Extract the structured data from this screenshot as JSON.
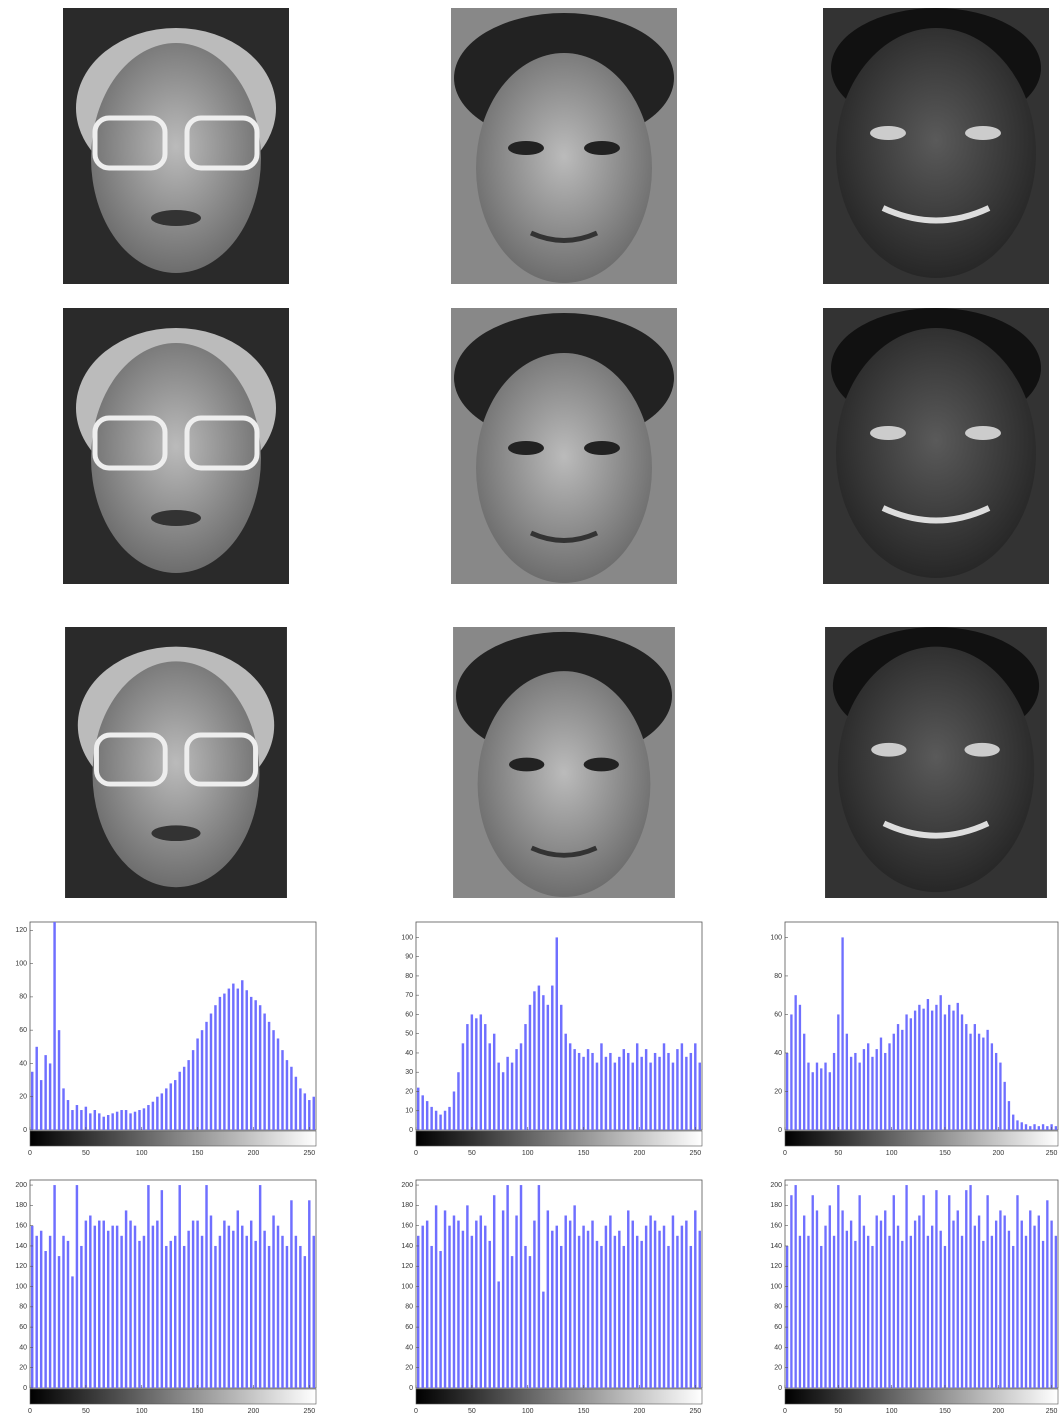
{
  "chart_data": [
    {
      "type": "histogram",
      "color": "#6f6fff",
      "xlim": [
        0,
        256
      ],
      "ylim": [
        0,
        125
      ],
      "xticks": [
        0,
        50,
        100,
        150,
        200,
        250
      ],
      "yticks": [
        0,
        20,
        40,
        60,
        80,
        100,
        120
      ],
      "bins": [
        0,
        4,
        8,
        12,
        16,
        20,
        24,
        28,
        32,
        36,
        40,
        44,
        48,
        52,
        56,
        60,
        64,
        68,
        72,
        76,
        80,
        84,
        88,
        92,
        96,
        100,
        104,
        108,
        112,
        116,
        120,
        124,
        128,
        132,
        136,
        140,
        144,
        148,
        152,
        156,
        160,
        164,
        168,
        172,
        176,
        180,
        184,
        188,
        192,
        196,
        200,
        204,
        208,
        212,
        216,
        220,
        224,
        228,
        232,
        236,
        240,
        244,
        248,
        252,
        256
      ],
      "values": [
        35,
        50,
        30,
        45,
        40,
        125,
        60,
        25,
        18,
        12,
        15,
        12,
        14,
        10,
        12,
        10,
        8,
        9,
        10,
        11,
        12,
        12,
        10,
        11,
        12,
        13,
        15,
        17,
        20,
        22,
        25,
        28,
        30,
        35,
        38,
        42,
        48,
        55,
        60,
        65,
        70,
        75,
        80,
        82,
        85,
        88,
        85,
        90,
        84,
        80,
        78,
        75,
        70,
        65,
        60,
        55,
        48,
        42,
        38,
        32,
        25,
        22,
        18,
        20
      ]
    },
    {
      "type": "histogram",
      "color": "#6f6fff",
      "xlim": [
        0,
        256
      ],
      "ylim": [
        0,
        108
      ],
      "xticks": [
        0,
        50,
        100,
        150,
        200,
        250
      ],
      "yticks": [
        0,
        10,
        20,
        30,
        40,
        50,
        60,
        70,
        80,
        90,
        100
      ],
      "bins": [
        0,
        4,
        8,
        12,
        16,
        20,
        24,
        28,
        32,
        36,
        40,
        44,
        48,
        52,
        56,
        60,
        64,
        68,
        72,
        76,
        80,
        84,
        88,
        92,
        96,
        100,
        104,
        108,
        112,
        116,
        120,
        124,
        128,
        132,
        136,
        140,
        144,
        148,
        152,
        156,
        160,
        164,
        168,
        172,
        176,
        180,
        184,
        188,
        192,
        196,
        200,
        204,
        208,
        212,
        216,
        220,
        224,
        228,
        232,
        236,
        240,
        244,
        248,
        252,
        256
      ],
      "values": [
        22,
        18,
        15,
        12,
        10,
        8,
        10,
        12,
        20,
        30,
        45,
        55,
        60,
        58,
        60,
        55,
        45,
        50,
        35,
        30,
        38,
        35,
        42,
        45,
        55,
        65,
        72,
        75,
        70,
        65,
        75,
        100,
        65,
        50,
        45,
        42,
        40,
        38,
        42,
        40,
        35,
        45,
        38,
        40,
        35,
        38,
        42,
        40,
        35,
        45,
        38,
        42,
        35,
        40,
        38,
        45,
        40,
        35,
        42,
        45,
        38,
        40,
        45,
        35
      ]
    },
    {
      "type": "histogram",
      "color": "#6f6fff",
      "xlim": [
        0,
        256
      ],
      "ylim": [
        0,
        108
      ],
      "xticks": [
        0,
        50,
        100,
        150,
        200,
        250
      ],
      "yticks": [
        0,
        20,
        40,
        60,
        80,
        100
      ],
      "bins": [
        0,
        4,
        8,
        12,
        16,
        20,
        24,
        28,
        32,
        36,
        40,
        44,
        48,
        52,
        56,
        60,
        64,
        68,
        72,
        76,
        80,
        84,
        88,
        92,
        96,
        100,
        104,
        108,
        112,
        116,
        120,
        124,
        128,
        132,
        136,
        140,
        144,
        148,
        152,
        156,
        160,
        164,
        168,
        172,
        176,
        180,
        184,
        188,
        192,
        196,
        200,
        204,
        208,
        212,
        216,
        220,
        224,
        228,
        232,
        236,
        240,
        244,
        248,
        252,
        256
      ],
      "values": [
        40,
        60,
        70,
        65,
        50,
        35,
        30,
        35,
        32,
        35,
        30,
        40,
        60,
        100,
        50,
        38,
        40,
        35,
        42,
        45,
        38,
        42,
        48,
        40,
        45,
        50,
        55,
        52,
        60,
        58,
        62,
        65,
        63,
        68,
        62,
        65,
        70,
        60,
        65,
        62,
        66,
        60,
        55,
        50,
        55,
        50,
        48,
        52,
        45,
        40,
        35,
        25,
        15,
        8,
        5,
        4,
        3,
        2,
        3,
        2,
        3,
        2,
        3,
        2
      ]
    },
    {
      "type": "histogram",
      "color": "#6f6fff",
      "xlim": [
        0,
        256
      ],
      "ylim": [
        0,
        205
      ],
      "xticks": [
        0,
        50,
        100,
        150,
        200,
        250
      ],
      "yticks": [
        0,
        20,
        40,
        60,
        80,
        100,
        120,
        140,
        160,
        180,
        200
      ],
      "bins": [
        0,
        4,
        8,
        12,
        16,
        20,
        24,
        28,
        32,
        36,
        40,
        44,
        48,
        52,
        56,
        60,
        64,
        68,
        72,
        76,
        80,
        84,
        88,
        92,
        96,
        100,
        104,
        108,
        112,
        116,
        120,
        124,
        128,
        132,
        136,
        140,
        144,
        148,
        152,
        156,
        160,
        164,
        168,
        172,
        176,
        180,
        184,
        188,
        192,
        196,
        200,
        204,
        208,
        212,
        216,
        220,
        224,
        228,
        232,
        236,
        240,
        244,
        248,
        252,
        256
      ],
      "values": [
        160,
        150,
        155,
        135,
        150,
        200,
        130,
        150,
        145,
        110,
        200,
        140,
        165,
        170,
        160,
        165,
        165,
        155,
        160,
        160,
        150,
        175,
        165,
        160,
        145,
        150,
        200,
        160,
        165,
        195,
        140,
        145,
        150,
        200,
        140,
        155,
        165,
        165,
        150,
        200,
        170,
        140,
        150,
        165,
        160,
        155,
        175,
        160,
        150,
        165,
        145,
        200,
        155,
        140,
        170,
        160,
        150,
        140,
        185,
        150,
        140,
        130,
        185,
        150
      ]
    },
    {
      "type": "histogram",
      "color": "#6f6fff",
      "xlim": [
        0,
        256
      ],
      "ylim": [
        0,
        205
      ],
      "xticks": [
        0,
        50,
        100,
        150,
        200,
        250
      ],
      "yticks": [
        0,
        20,
        40,
        60,
        80,
        100,
        120,
        140,
        160,
        180,
        200
      ],
      "bins": [
        0,
        4,
        8,
        12,
        16,
        20,
        24,
        28,
        32,
        36,
        40,
        44,
        48,
        52,
        56,
        60,
        64,
        68,
        72,
        76,
        80,
        84,
        88,
        92,
        96,
        100,
        104,
        108,
        112,
        116,
        120,
        124,
        128,
        132,
        136,
        140,
        144,
        148,
        152,
        156,
        160,
        164,
        168,
        172,
        176,
        180,
        184,
        188,
        192,
        196,
        200,
        204,
        208,
        212,
        216,
        220,
        224,
        228,
        232,
        236,
        240,
        244,
        248,
        252,
        256
      ],
      "values": [
        150,
        160,
        165,
        140,
        180,
        135,
        175,
        160,
        170,
        165,
        155,
        180,
        150,
        165,
        170,
        160,
        145,
        190,
        105,
        175,
        200,
        130,
        170,
        200,
        140,
        130,
        165,
        200,
        95,
        175,
        155,
        160,
        140,
        170,
        165,
        180,
        150,
        160,
        155,
        165,
        145,
        140,
        160,
        170,
        150,
        155,
        140,
        175,
        165,
        150,
        145,
        160,
        170,
        165,
        155,
        160,
        140,
        170,
        150,
        160,
        165,
        140,
        175,
        155
      ]
    },
    {
      "type": "histogram",
      "color": "#6f6fff",
      "xlim": [
        0,
        256
      ],
      "ylim": [
        0,
        205
      ],
      "xticks": [
        0,
        50,
        100,
        150,
        200,
        250
      ],
      "yticks": [
        0,
        20,
        40,
        60,
        80,
        100,
        120,
        140,
        160,
        180,
        200
      ],
      "bins": [
        0,
        4,
        8,
        12,
        16,
        20,
        24,
        28,
        32,
        36,
        40,
        44,
        48,
        52,
        56,
        60,
        64,
        68,
        72,
        76,
        80,
        84,
        88,
        92,
        96,
        100,
        104,
        108,
        112,
        116,
        120,
        124,
        128,
        132,
        136,
        140,
        144,
        148,
        152,
        156,
        160,
        164,
        168,
        172,
        176,
        180,
        184,
        188,
        192,
        196,
        200,
        204,
        208,
        212,
        216,
        220,
        224,
        228,
        232,
        236,
        240,
        244,
        248,
        252,
        256
      ],
      "values": [
        140,
        190,
        200,
        150,
        170,
        150,
        190,
        175,
        140,
        160,
        180,
        150,
        200,
        175,
        155,
        165,
        145,
        190,
        160,
        150,
        140,
        170,
        165,
        175,
        150,
        190,
        160,
        145,
        200,
        150,
        165,
        170,
        190,
        150,
        160,
        195,
        155,
        140,
        190,
        165,
        175,
        150,
        195,
        200,
        160,
        170,
        145,
        190,
        150,
        165,
        175,
        170,
        155,
        140,
        190,
        165,
        150,
        175,
        160,
        170,
        145,
        185,
        165,
        150
      ]
    }
  ]
}
